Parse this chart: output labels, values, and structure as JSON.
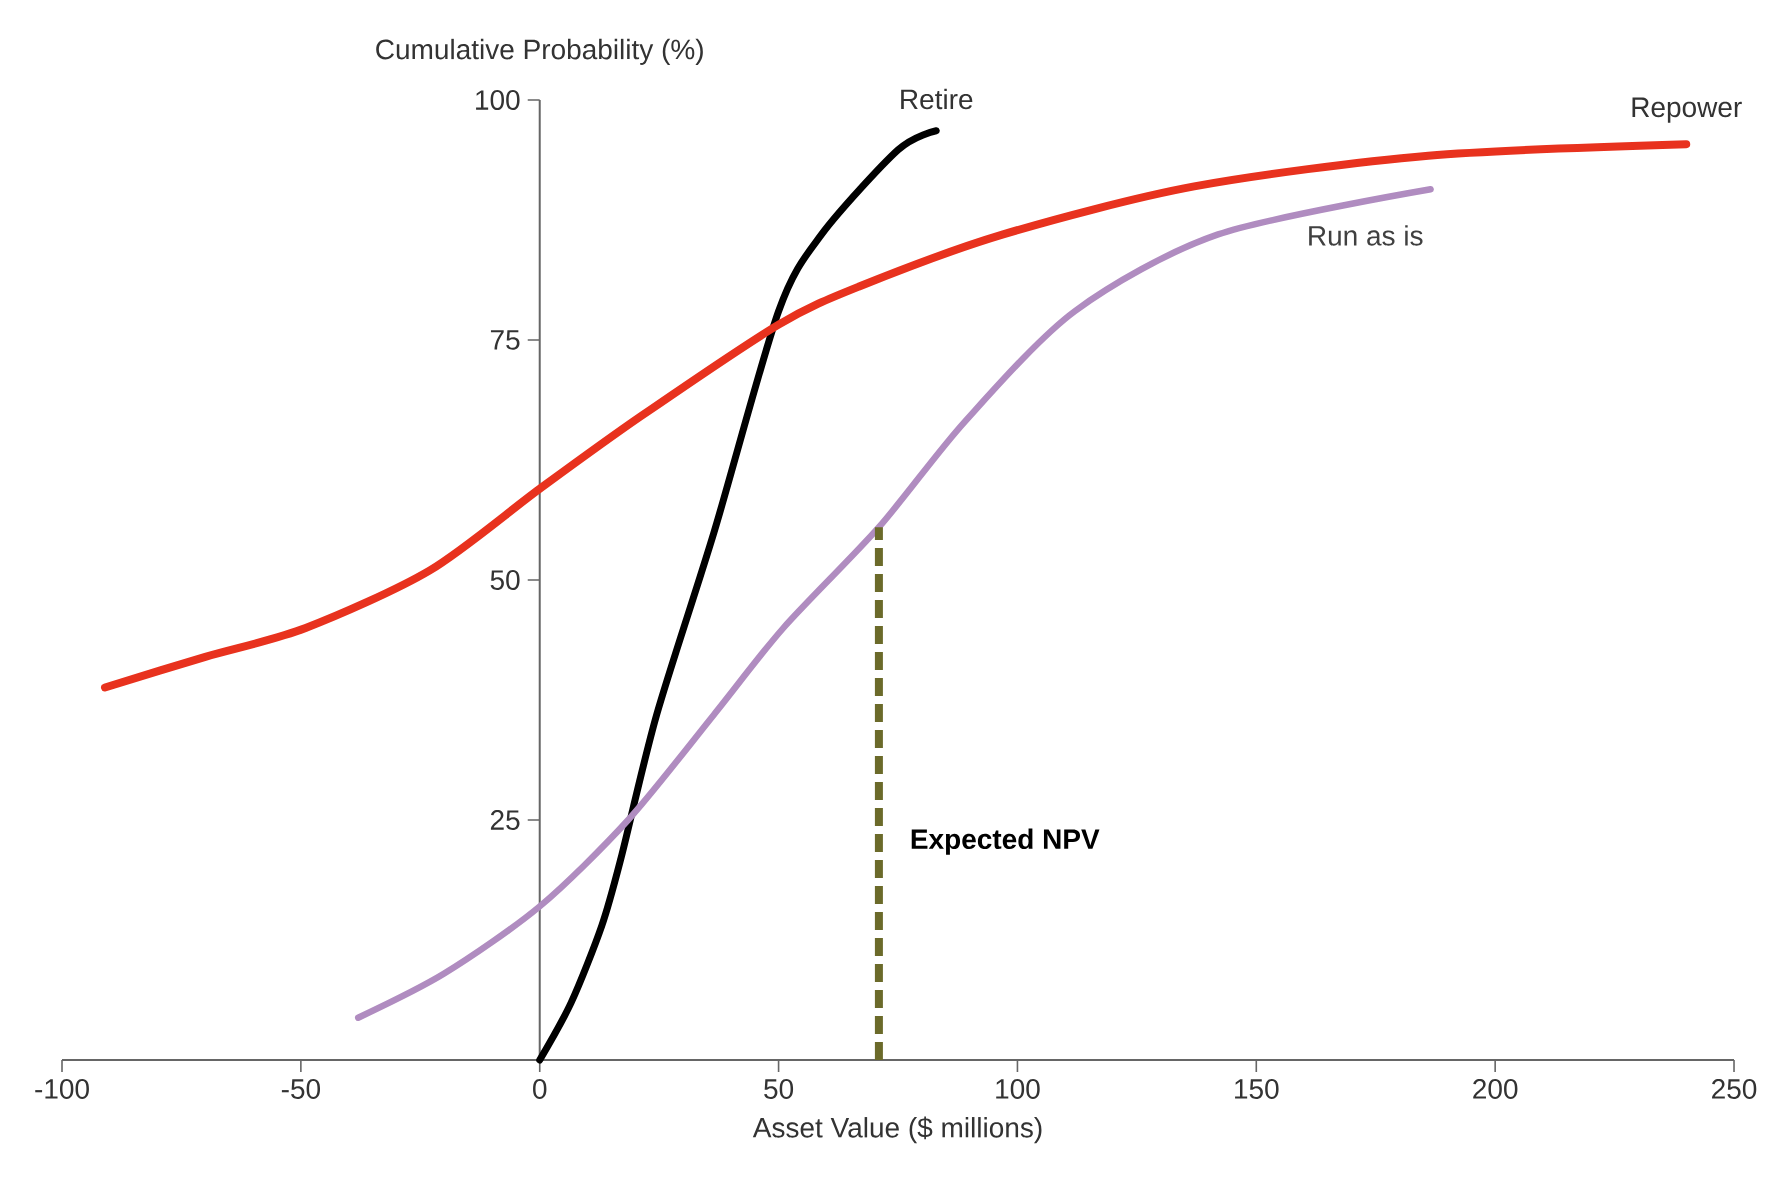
{
  "chart_data": {
    "type": "line",
    "xlabel": "Asset Value ($ millions)",
    "ylabel": "Cumulative Probability (%)",
    "xlim": [
      -100,
      250
    ],
    "ylim": [
      0,
      100
    ],
    "xticks": [
      -100,
      -50,
      0,
      50,
      100,
      150,
      200,
      250
    ],
    "yticks": [
      25,
      50,
      75,
      100
    ],
    "grid": false,
    "legend": false,
    "marker": "none",
    "line_style": "solid",
    "series": [
      {
        "name": "Retire",
        "color": "#000000",
        "x": [
          0,
          6.6,
          13,
          17,
          24.5,
          36.5,
          50,
          59,
          75,
          83
        ],
        "values": [
          0,
          6,
          14,
          21,
          36,
          55,
          78,
          86,
          94.8,
          96.8
        ]
      },
      {
        "name": "Repower",
        "color": "#e8321e",
        "x": [
          -91,
          -70,
          -49,
          -23,
          0,
          21,
          50,
          67,
          97,
          137,
          186,
          240
        ],
        "values": [
          38.8,
          42,
          45,
          51,
          59.5,
          67,
          76.6,
          80.6,
          86,
          91,
          94.2,
          95.4
        ]
      },
      {
        "name": "Run as is",
        "color": "#b08cc0",
        "x": [
          -38,
          -20,
          0,
          18.5,
          36.5,
          51,
          71,
          89,
          112,
          142,
          186.5
        ],
        "values": [
          4.4,
          9,
          16,
          25,
          36,
          45,
          55.5,
          66.5,
          78,
          86,
          90.7
        ]
      }
    ],
    "ref_lines": [
      {
        "axis": "x",
        "value": 71,
        "label": "Expected NPV",
        "color": "#6b6a2a",
        "line_style": "dashed"
      }
    ]
  }
}
